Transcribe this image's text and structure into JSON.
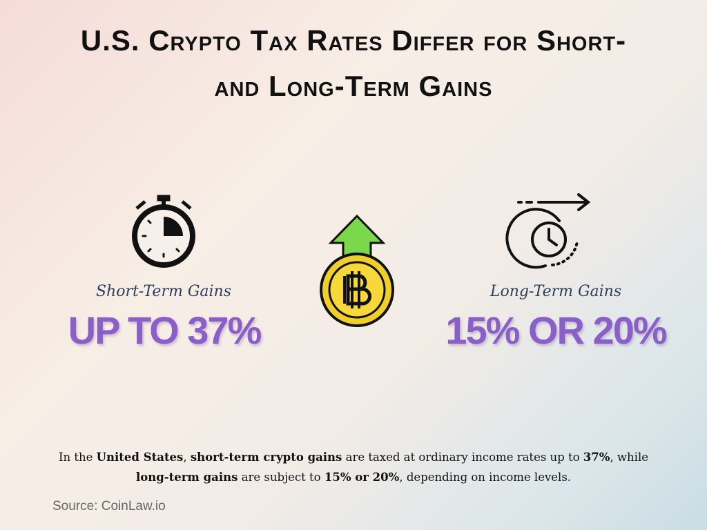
{
  "header": {
    "title_lines": [
      "U.S. Crypto Tax Rates Differ for Short-",
      "and Long-Term Gains"
    ]
  },
  "panels": [
    {
      "label": "Short-Term Gains",
      "value": "UP TO 37%"
    },
    {
      "label": "Long-Term Gains",
      "value": "15% OR 20%"
    }
  ],
  "description": [
    {
      "text": "In the ",
      "bold": false
    },
    {
      "text": "United States",
      "bold": true
    },
    {
      "text": ", ",
      "bold": false
    },
    {
      "text": "short-term crypto gains",
      "bold": true
    },
    {
      "text": " are taxed at ordinary income rates up to ",
      "bold": false
    },
    {
      "text": "37%",
      "bold": true
    },
    {
      "text": ", while ",
      "bold": false
    },
    {
      "text": "long-term gains",
      "bold": true
    },
    {
      "text": " are subject to ",
      "bold": false
    },
    {
      "text": "15% or 20%",
      "bold": true
    },
    {
      "text": ", depending on income levels.",
      "bold": false
    }
  ],
  "source": "Source: CoinLaw.io"
}
